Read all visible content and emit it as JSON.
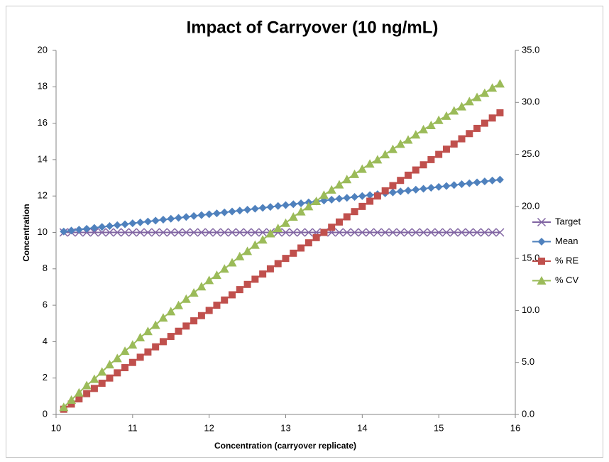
{
  "chart_data": {
    "type": "line",
    "title": "Impact of Carryover (10 ng/mL)",
    "x_label": "Concentration (carryover replicate)",
    "y_label": "Concentration",
    "x": [
      10.1,
      10.2,
      10.3,
      10.4,
      10.5,
      10.6,
      10.7,
      10.8,
      10.9,
      11,
      11.1,
      11.2,
      11.3,
      11.4,
      11.5,
      11.6,
      11.7,
      11.8,
      11.9,
      12,
      12.1,
      12.2,
      12.3,
      12.4,
      12.5,
      12.6,
      12.7,
      12.8,
      12.9,
      13,
      13.1,
      13.2,
      13.3,
      13.4,
      13.5,
      13.6,
      13.7,
      13.8,
      13.9,
      14,
      14.1,
      14.2,
      14.3,
      14.4,
      14.5,
      14.6,
      14.7,
      14.8,
      14.9,
      15,
      15.1,
      15.2,
      15.3,
      15.4,
      15.5,
      15.6,
      15.7,
      15.8
    ],
    "series": [
      {
        "name": "Target",
        "color": "#8064a2",
        "marker": "x",
        "values": [
          10,
          10,
          10,
          10,
          10,
          10,
          10,
          10,
          10,
          10,
          10,
          10,
          10,
          10,
          10,
          10,
          10,
          10,
          10,
          10,
          10,
          10,
          10,
          10,
          10,
          10,
          10,
          10,
          10,
          10,
          10,
          10,
          10,
          10,
          10,
          10,
          10,
          10,
          10,
          10,
          10,
          10,
          10,
          10,
          10,
          10,
          10,
          10,
          10,
          10,
          10,
          10,
          10,
          10,
          10,
          10,
          10,
          10
        ]
      },
      {
        "name": "Mean",
        "color": "#4f81bd",
        "marker": "diamond",
        "values": [
          10.05,
          10.1,
          10.15,
          10.2,
          10.25,
          10.3,
          10.35,
          10.4,
          10.45,
          10.5,
          10.55,
          10.6,
          10.65,
          10.7,
          10.75,
          10.8,
          10.85,
          10.9,
          10.95,
          11,
          11.05,
          11.1,
          11.15,
          11.2,
          11.25,
          11.3,
          11.35,
          11.4,
          11.45,
          11.5,
          11.55,
          11.6,
          11.65,
          11.7,
          11.75,
          11.8,
          11.85,
          11.9,
          11.95,
          12,
          12.05,
          12.1,
          12.15,
          12.2,
          12.25,
          12.3,
          12.35,
          12.4,
          12.45,
          12.5,
          12.55,
          12.6,
          12.65,
          12.7,
          12.75,
          12.8,
          12.85,
          12.9
        ]
      },
      {
        "name": "% RE",
        "color": "#c0504d",
        "marker": "square",
        "axis": "y2",
        "values": [
          0.5,
          1,
          1.5,
          2,
          2.5,
          3,
          3.5,
          4,
          4.5,
          5,
          5.5,
          6,
          6.5,
          7,
          7.5,
          8,
          8.5,
          9,
          9.5,
          10,
          10.5,
          11,
          11.5,
          12,
          12.5,
          13,
          13.5,
          14,
          14.5,
          15,
          15.5,
          16,
          16.5,
          17,
          17.5,
          18,
          18.5,
          19,
          19.5,
          20,
          20.5,
          21,
          21.5,
          22,
          22.5,
          23,
          23.5,
          24,
          24.5,
          25,
          25.5,
          26,
          26.5,
          27,
          27.5,
          28,
          28.5,
          29
        ]
      },
      {
        "name": "% CV",
        "color": "#9bbb59",
        "marker": "triangle",
        "axis": "y2",
        "values": [
          0.7,
          1.4,
          2.1,
          2.8,
          3.4,
          4.1,
          4.8,
          5.4,
          6.1,
          6.7,
          7.4,
          8.0,
          8.6,
          9.3,
          9.9,
          10.5,
          11.1,
          11.7,
          12.3,
          12.9,
          13.4,
          14.0,
          14.6,
          15.2,
          15.7,
          16.3,
          16.8,
          17.4,
          17.9,
          18.4,
          19.0,
          19.5,
          20.0,
          20.5,
          21.1,
          21.6,
          22.1,
          22.6,
          23.1,
          23.6,
          24.1,
          24.5,
          25.0,
          25.5,
          26.0,
          26.4,
          26.9,
          27.4,
          27.8,
          28.3,
          28.7,
          29.2,
          29.6,
          30.1,
          30.5,
          30.9,
          31.4,
          31.8
        ]
      }
    ],
    "xlim": [
      10,
      16
    ],
    "xticks": [
      10,
      11,
      12,
      13,
      14,
      15,
      16
    ],
    "ylim": [
      0,
      20
    ],
    "yticks": [
      0,
      2,
      4,
      6,
      8,
      10,
      12,
      14,
      16,
      18,
      20
    ],
    "y2lim": [
      0,
      35
    ],
    "y2ticks": [
      {
        "value": 0,
        "label": "0.0"
      },
      {
        "value": 5,
        "label": "5.0"
      },
      {
        "value": 10,
        "label": "10.0"
      },
      {
        "value": 15,
        "label": "15.0"
      },
      {
        "value": 20,
        "label": "20.0"
      },
      {
        "value": 25,
        "label": "25.0"
      },
      {
        "value": 30,
        "label": "30.0"
      },
      {
        "value": 35,
        "label": "35.0"
      }
    ],
    "grid": false,
    "legend": "right"
  }
}
